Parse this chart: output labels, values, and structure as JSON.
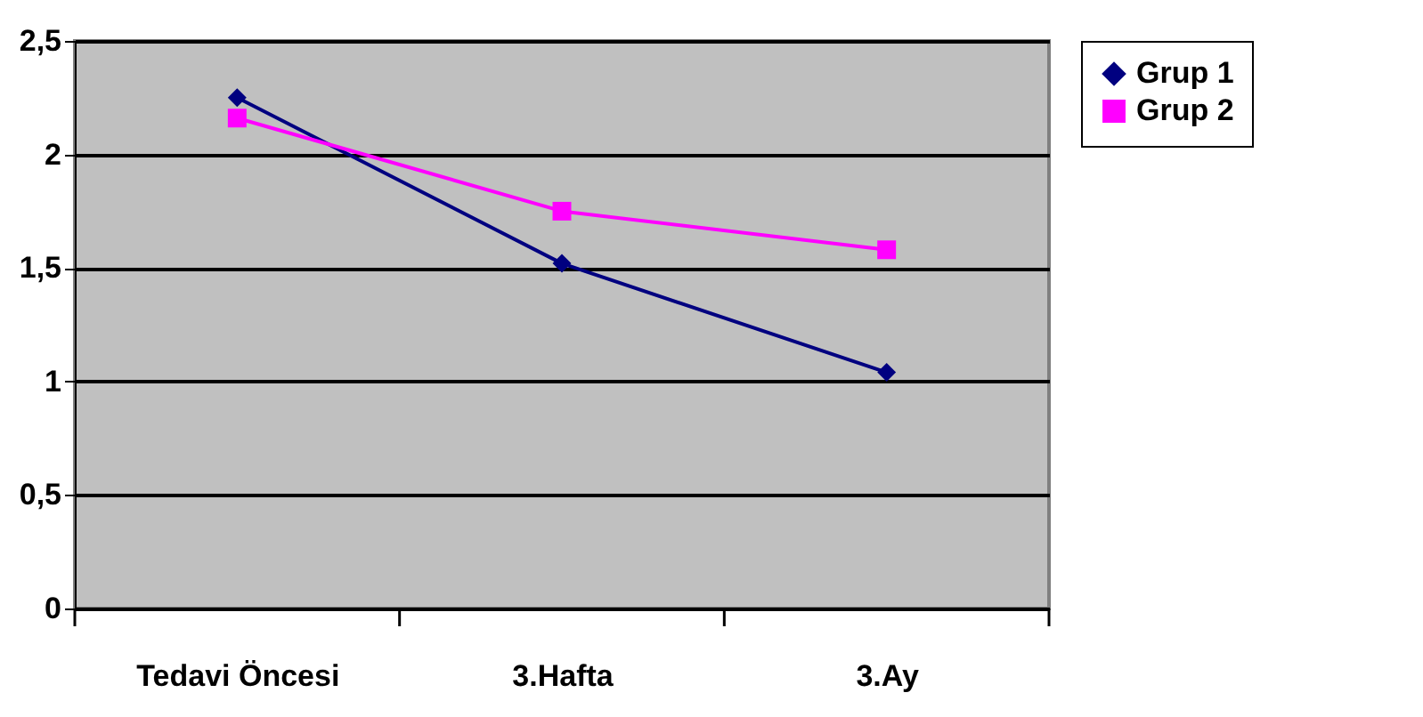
{
  "chart_data": {
    "type": "line",
    "categories": [
      "Tedavi Öncesi",
      "3.Hafta",
      "3.Ay"
    ],
    "series": [
      {
        "name": "Grup 1",
        "color": "#000080",
        "marker": "diamond",
        "values": [
          2.25,
          1.52,
          1.04
        ]
      },
      {
        "name": "Grup 2",
        "color": "#ff00ff",
        "marker": "square",
        "values": [
          2.16,
          1.75,
          1.58
        ]
      }
    ],
    "ylim": [
      0,
      2.5
    ],
    "yticks": [
      {
        "value": 0,
        "label": "0"
      },
      {
        "value": 0.5,
        "label": "0,5"
      },
      {
        "value": 1,
        "label": "1"
      },
      {
        "value": 1.5,
        "label": "1,5"
      },
      {
        "value": 2,
        "label": "2"
      },
      {
        "value": 2.5,
        "label": "2,5"
      }
    ],
    "grid": "y",
    "legend": "right",
    "line_style": "solid"
  }
}
